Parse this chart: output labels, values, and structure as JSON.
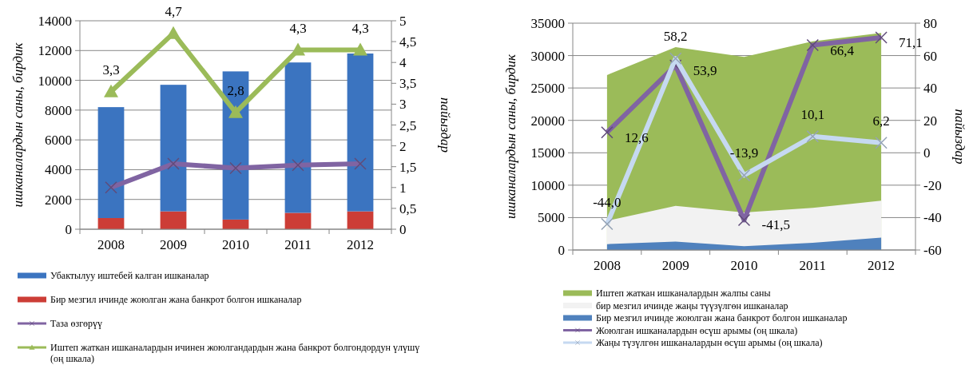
{
  "chart_data": [
    {
      "type": "bar",
      "stacked": true,
      "categories": [
        "2008",
        "2009",
        "2010",
        "2011",
        "2012"
      ],
      "ylabel": "ишканалардын саны, бирдик",
      "y2label": "пайыздар",
      "ylim": [
        0,
        14000
      ],
      "yticks": [
        0,
        2000,
        4000,
        6000,
        8000,
        10000,
        12000,
        14000
      ],
      "y2lim": [
        0,
        5
      ],
      "y2ticks": [
        0,
        {
          "value": 0.5,
          "label": "0,5"
        },
        1,
        {
          "value": 1.5,
          "label": "1,5"
        },
        2,
        {
          "value": 2.5,
          "label": "2,5"
        },
        3,
        {
          "value": 3.5,
          "label": "3,5"
        },
        4,
        {
          "value": 4.5,
          "label": "4,5"
        },
        5
      ],
      "grid": "y",
      "legend": "bottom",
      "series": [
        {
          "name": "Бир мезгил ичинде жоюлган жана банкрот болгон ишканалар",
          "color": "#cc3d36",
          "values": [
            750,
            1200,
            650,
            1100,
            1200
          ]
        },
        {
          "name": "Убактылуу иштебей калган ишканалар",
          "color": "#3b74c0",
          "values": [
            7450,
            8500,
            9950,
            10100,
            10600
          ]
        },
        {
          "name": "Таза өзгөрүү",
          "type": "line",
          "color": "#8064a2",
          "marker": "cross",
          "values": [
            2800,
            4400,
            4100,
            4300,
            4400
          ]
        },
        {
          "name": "Иштеп жаткан ишканалардын ичинен жоюлгандардын жана банкрот болгондордун үлүшү  (оң шкала)",
          "type": "line",
          "axis": "y2",
          "color": "#9bbb59",
          "marker": "triangle",
          "values": [
            3.3,
            4.7,
            2.8,
            4.3,
            4.3
          ],
          "value_labels": [
            "3,3",
            "4,7",
            "2,8",
            "4,3",
            "4,3"
          ]
        }
      ]
    },
    {
      "type": "area",
      "categories": [
        "2008",
        "2009",
        "2010",
        "2011",
        "2012"
      ],
      "ylabel": "ишканалардын саны, бирдик",
      "y2label": "пайыздар",
      "ylim": [
        0,
        35000
      ],
      "yticks": [
        0,
        5000,
        10000,
        15000,
        20000,
        25000,
        30000,
        35000
      ],
      "y2lim": [
        -60,
        80
      ],
      "y2ticks": [
        -60,
        -40,
        -20,
        0,
        20,
        40,
        60,
        80
      ],
      "grid": "y",
      "legend": "bottom",
      "series": [
        {
          "name": "Иштеп жаткан ишканалардын жалпы саны",
          "color": "#9bbb59",
          "values": [
            27000,
            31300,
            29800,
            32200,
            33500
          ]
        },
        {
          "name": "бир мезгил ичинде жаңы түүзүлгөн ишканалар",
          "color": "#f2f2f2",
          "values": [
            4500,
            6800,
            5800,
            6500,
            7600
          ]
        },
        {
          "name": "Бир мезгил ичинде жоюлган жана банкрот болгон ишканалар",
          "color": "#4f81bd",
          "values": [
            900,
            1300,
            600,
            1100,
            1900
          ]
        },
        {
          "name": "Жоюлган ишканалардын өсүш арымы   (оң шкала)",
          "type": "line",
          "axis": "y2",
          "color": "#8064a2",
          "marker": "cross",
          "values": [
            12.6,
            53.9,
            -41.5,
            66.4,
            71.1
          ],
          "value_labels": [
            "12,6",
            "53,9",
            "-41,5",
            "66,4",
            "71,1"
          ]
        },
        {
          "name": "Жаңы түзүлгөн ишканалардын өсүш арымы   (оң шкала)",
          "type": "line",
          "axis": "y2",
          "color": "#c6d9f1",
          "marker": "cross",
          "values": [
            -44.0,
            58.2,
            -13.9,
            10.1,
            6.2
          ],
          "value_labels": [
            "-44,0",
            "58,2",
            "-13,9",
            "10,1",
            "6,2"
          ]
        }
      ]
    }
  ]
}
